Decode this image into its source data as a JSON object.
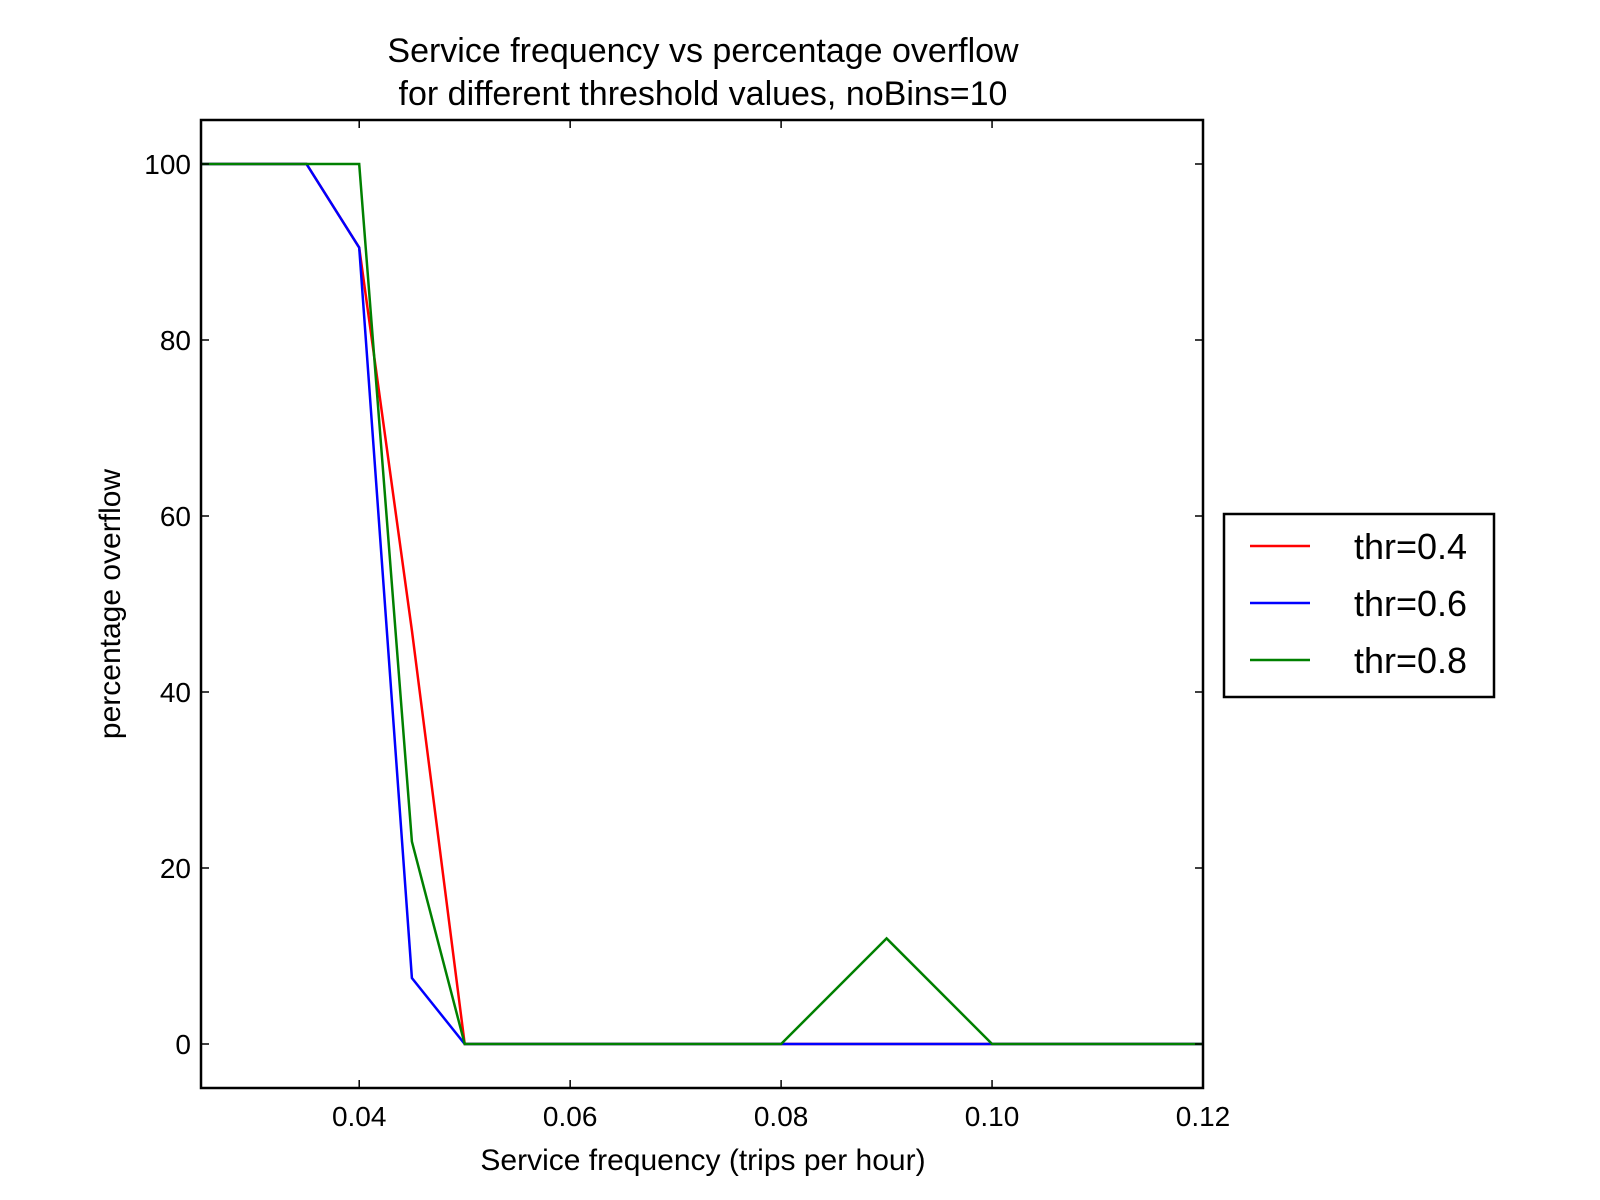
{
  "chart_data": {
    "type": "line",
    "title": "Service frequency vs percentage overflow",
    "subtitle": "for different threshold values, noBins=10",
    "xlabel": "Service frequency (trips per hour)",
    "ylabel": "percentage overflow",
    "xlim": [
      0.025,
      0.12
    ],
    "ylim": [
      -5,
      105
    ],
    "xticks": [
      0.04,
      0.06,
      0.08,
      0.1,
      0.12
    ],
    "xtick_labels": [
      "0.04",
      "0.06",
      "0.08",
      "0.10",
      "0.12"
    ],
    "yticks": [
      0,
      20,
      40,
      60,
      80,
      100
    ],
    "ytick_labels": [
      "0",
      "20",
      "40",
      "60",
      "80",
      "100"
    ],
    "grid": false,
    "legend_position": "right-outside",
    "series": [
      {
        "name": "thr=0.4",
        "color": "#ff0000",
        "x": [
          0.025,
          0.035,
          0.04,
          0.045,
          0.05,
          0.06,
          0.07,
          0.08,
          0.09,
          0.1,
          0.11,
          0.12
        ],
        "y": [
          100,
          100,
          90.5,
          47,
          0,
          0,
          0,
          0,
          0,
          0,
          0,
          0
        ]
      },
      {
        "name": "thr=0.6",
        "color": "#0000ff",
        "x": [
          0.025,
          0.035,
          0.04,
          0.045,
          0.05,
          0.06,
          0.07,
          0.08,
          0.09,
          0.1,
          0.11,
          0.12
        ],
        "y": [
          100,
          100,
          90.5,
          7.5,
          0,
          0,
          0,
          0,
          0,
          0,
          0,
          0
        ]
      },
      {
        "name": "thr=0.8",
        "color": "#008000",
        "x": [
          0.025,
          0.035,
          0.04,
          0.045,
          0.05,
          0.06,
          0.07,
          0.08,
          0.09,
          0.1,
          0.11,
          0.12
        ],
        "y": [
          100,
          100,
          100,
          23,
          0,
          0,
          0,
          0,
          12,
          0,
          0,
          0
        ]
      }
    ]
  }
}
